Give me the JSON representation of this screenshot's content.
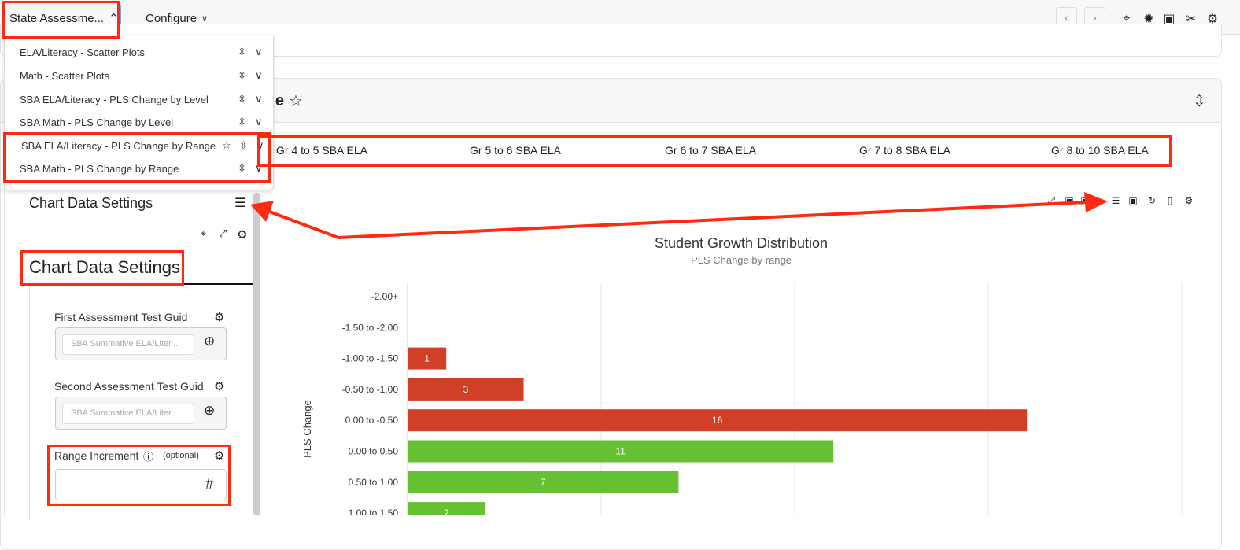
{
  "topbar": {
    "menu": "State Assessme...",
    "configure": "Configure",
    "prev": "‹",
    "next": "›"
  },
  "dropdown": {
    "items": [
      {
        "label": "ELA/Literacy - Scatter Plots"
      },
      {
        "label": "Math - Scatter Plots"
      },
      {
        "label": "SBA ELA/Literacy - PLS Change by Level"
      },
      {
        "label": "SBA Math - PLS Change by Level"
      },
      {
        "label": "SBA ELA/Literacy - PLS Change by Range",
        "starred": true,
        "active": true
      },
      {
        "label": "SBA Math - PLS Change by Range"
      }
    ]
  },
  "panel": {
    "title": "SBA ELA/Literacy - PLS Change by Range"
  },
  "tabs": [
    "Gr 4 to 5 SBA ELA",
    "Gr 5 to 6 SBA ELA",
    "Gr 6 to 7 SBA ELA",
    "Gr 7 to 8 SBA ELA",
    "Gr 8 to 10 SBA ELA"
  ],
  "settings": {
    "header": "Chart Data Settings",
    "tab_title": "Chart Data Settings",
    "first_label": "First Assessment Test Guid",
    "first_placeholder": "SBA Summative ELA/Liter...",
    "second_label": "Second Assessment Test Guid",
    "second_placeholder": "SBA Summative ELA/Liter...",
    "range_label": "Range Increment",
    "range_optional": "(optional)",
    "range_symbol": "#"
  },
  "colors": {
    "negative": "#d13f27",
    "positive": "#65c132",
    "annotation": "#ff2a0f"
  },
  "chart_data": {
    "type": "bar",
    "orientation": "horizontal",
    "title": "Student Growth Distribution",
    "subtitle": "PLS Change by range",
    "ylabel": "PLS Change",
    "xlim": [
      0,
      20
    ],
    "grid": true,
    "categories": [
      "-2.00+",
      "-1.50 to -2.00",
      "-1.00 to -1.50",
      "-0.50 to -1.00",
      "0.00 to -0.50",
      "0.00 to 0.50",
      "0.50 to 1.00",
      "1.00 to 1.50"
    ],
    "values": [
      0,
      0,
      1,
      3,
      16,
      11,
      7,
      2
    ],
    "colors": [
      "#d13f27",
      "#d13f27",
      "#d13f27",
      "#d13f27",
      "#d13f27",
      "#65c132",
      "#65c132",
      "#65c132"
    ]
  }
}
